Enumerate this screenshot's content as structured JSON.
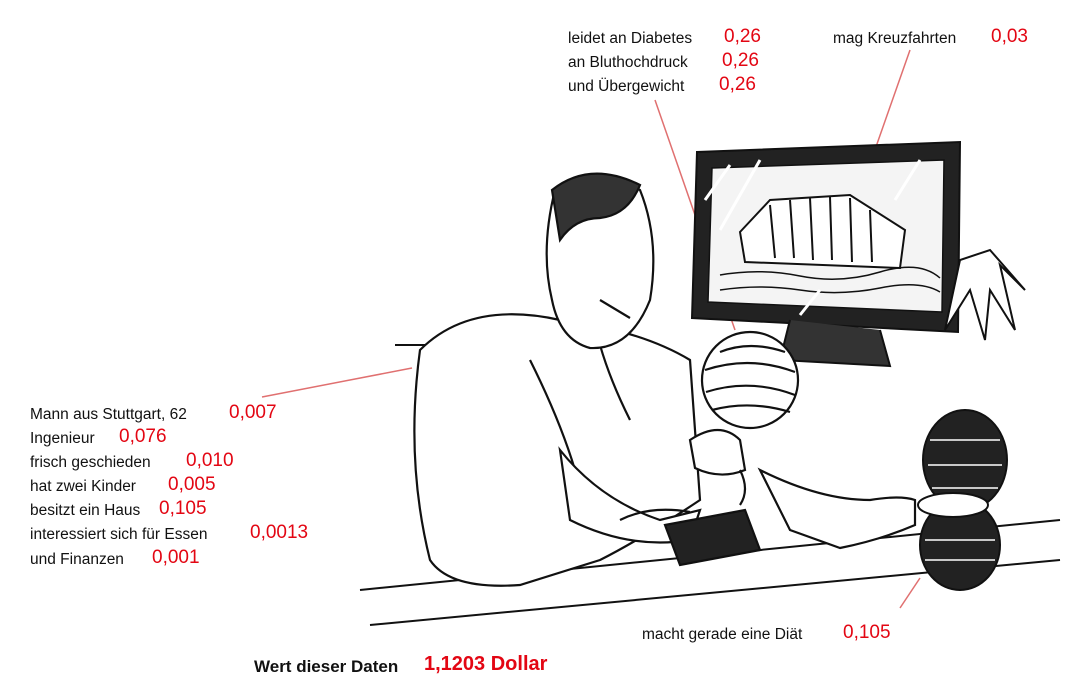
{
  "top_labels": [
    {
      "text": "leidet an Diabetes",
      "value": "0,26"
    },
    {
      "text": "an Bluthochdruck",
      "value": "0,26"
    },
    {
      "text": "und Übergewicht",
      "value": "0,26"
    }
  ],
  "cruise": {
    "text": "mag Kreuzfahrten",
    "value": "0,03"
  },
  "left_labels": [
    {
      "text": "Mann aus Stuttgart, 62",
      "value": "0,007"
    },
    {
      "text": "Ingenieur",
      "value": "0,076"
    },
    {
      "text": "frisch geschieden",
      "value": "0,010"
    },
    {
      "text": "hat zwei Kinder",
      "value": "0,005"
    },
    {
      "text": "besitzt ein Haus",
      "value": "0,105"
    },
    {
      "text": "interessiert sich für Essen",
      "value": "0,0013"
    },
    {
      "text": "und Finanzen",
      "value": "0,001"
    }
  ],
  "diet": {
    "text": "macht gerade eine Diät",
    "value": "0,105"
  },
  "total": {
    "label": "Wert dieser Daten",
    "value": "1,1203 Dollar"
  },
  "accent_color": "#e30613"
}
